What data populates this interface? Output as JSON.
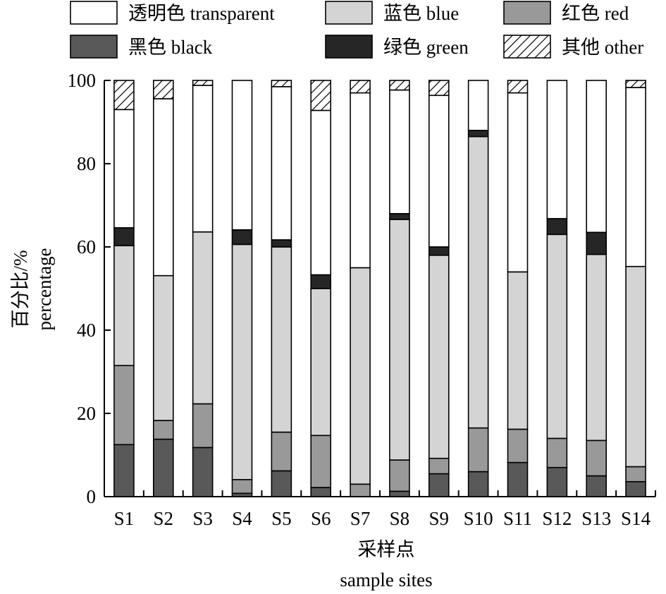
{
  "chart_data": {
    "type": "bar",
    "stacked": true,
    "ylabel_zh": "百分比/%",
    "ylabel_en": "percentage",
    "xlabel_zh": "采样点",
    "xlabel_en": "sample sites",
    "ylim": [
      0,
      100
    ],
    "yticks": [
      "0",
      "20",
      "40",
      "60",
      "80",
      "100"
    ],
    "categories": [
      "S1",
      "S2",
      "S3",
      "S4",
      "S5",
      "S6",
      "S7",
      "S8",
      "S9",
      "S10",
      "S11",
      "S12",
      "S13",
      "S14"
    ],
    "legend_position": "top",
    "series": [
      {
        "name": "黑色 black",
        "color": "#595959",
        "pattern": "solid",
        "values": [
          12.5,
          13.8,
          11.8,
          0.8,
          6.2,
          2.2,
          0.0,
          1.3,
          5.5,
          6.0,
          8.2,
          7.0,
          5.0,
          3.6
        ]
      },
      {
        "name": "红色 red",
        "color": "#999999",
        "pattern": "solid",
        "values": [
          19.0,
          4.5,
          10.5,
          3.3,
          9.3,
          12.5,
          3.0,
          7.5,
          3.7,
          10.5,
          8.0,
          7.0,
          8.5,
          3.6
        ]
      },
      {
        "name": "蓝色 blue",
        "color": "#d4d4d4",
        "pattern": "solid",
        "values": [
          28.8,
          34.8,
          41.3,
          56.5,
          44.5,
          35.3,
          52.0,
          57.8,
          48.8,
          70.0,
          37.8,
          49.0,
          44.7,
          48.1
        ]
      },
      {
        "name": "绿色 green",
        "color": "#262626",
        "pattern": "solid",
        "values": [
          4.3,
          0.0,
          0.0,
          3.5,
          1.7,
          3.3,
          0.0,
          1.4,
          2.0,
          1.5,
          0.0,
          3.8,
          5.3,
          0.0
        ]
      },
      {
        "name": "透明色 transparent",
        "color": "#ffffff",
        "pattern": "solid",
        "values": [
          28.4,
          42.5,
          35.2,
          35.9,
          36.8,
          39.5,
          42.0,
          29.7,
          36.4,
          12.0,
          43.0,
          33.2,
          36.5,
          43.0
        ]
      },
      {
        "name": "其他 other",
        "color": "#ffffff",
        "pattern": "hatch",
        "values": [
          7.0,
          4.4,
          1.2,
          0.0,
          1.5,
          7.2,
          3.0,
          2.3,
          3.6,
          0.0,
          3.0,
          0.0,
          0.0,
          1.7
        ]
      }
    ],
    "legend": [
      "透明色 transparent",
      "蓝色 blue",
      "红色 red",
      "黑色 black",
      "绿色 green",
      "其他 other"
    ]
  }
}
